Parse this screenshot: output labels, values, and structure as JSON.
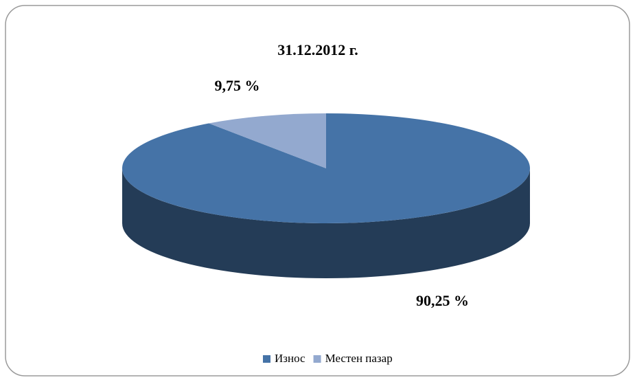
{
  "chart_data": {
    "type": "pie3d",
    "title": "31.12.2012 г.",
    "series": [
      {
        "name": "Износ",
        "color": "#4573a7",
        "values": [
          90.25
        ],
        "value_labels": [
          "90,25 %"
        ]
      },
      {
        "name": "Местен пазар",
        "color": "#93a9cf",
        "values": [
          9.75
        ],
        "value_labels": [
          "9,75 %"
        ]
      }
    ],
    "legend": "bottom"
  }
}
